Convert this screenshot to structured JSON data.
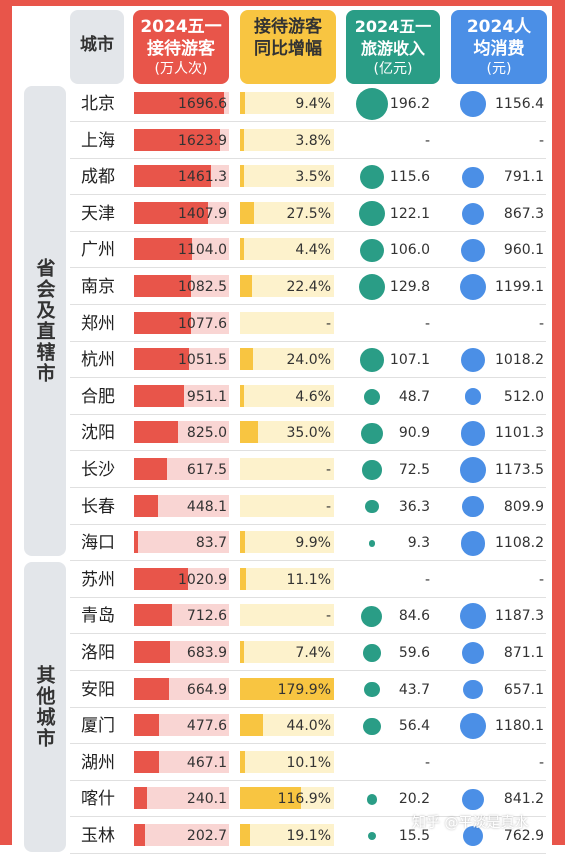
{
  "headers": {
    "city": "城市",
    "visitors_title": "2024五一接待游客",
    "visitors_unit": "(万人次)",
    "growth_title": "接待游客同比增幅",
    "revenue_title": "2024五一旅游收入",
    "revenue_unit": "(亿元)",
    "spend_title": "2024人均消费",
    "spend_unit": "(元)"
  },
  "groups": [
    "省会及直辖市",
    "其他城市"
  ],
  "colors": {
    "visitors": "#e8554a",
    "growth": "#f8c541",
    "revenue": "#2a9d86",
    "spend": "#4b8fe6",
    "frame": "#e8554a"
  },
  "watermark": "知乎 @平淡是真水",
  "chart_data": {
    "type": "table",
    "columns": [
      "城市",
      "2024五一接待游客(万人次)",
      "接待游客同比增幅",
      "2024五一旅游收入(亿元)",
      "2024人均消费(元)"
    ],
    "rows": [
      {
        "city": "北京",
        "group": "省会及直辖市",
        "visitors": "1696.6",
        "growth": "9.4%",
        "revenue": "196.2",
        "spend": "1156.4"
      },
      {
        "city": "上海",
        "group": "省会及直辖市",
        "visitors": "1623.9",
        "growth": "3.8%",
        "revenue": "-",
        "spend": "-"
      },
      {
        "city": "成都",
        "group": "省会及直辖市",
        "visitors": "1461.3",
        "growth": "3.5%",
        "revenue": "115.6",
        "spend": "791.1"
      },
      {
        "city": "天津",
        "group": "省会及直辖市",
        "visitors": "1407.9",
        "growth": "27.5%",
        "revenue": "122.1",
        "spend": "867.3"
      },
      {
        "city": "广州",
        "group": "省会及直辖市",
        "visitors": "1104.0",
        "growth": "4.4%",
        "revenue": "106.0",
        "spend": "960.1"
      },
      {
        "city": "南京",
        "group": "省会及直辖市",
        "visitors": "1082.5",
        "growth": "22.4%",
        "revenue": "129.8",
        "spend": "1199.1"
      },
      {
        "city": "郑州",
        "group": "省会及直辖市",
        "visitors": "1077.6",
        "growth": "-",
        "revenue": "-",
        "spend": "-"
      },
      {
        "city": "杭州",
        "group": "省会及直辖市",
        "visitors": "1051.5",
        "growth": "24.0%",
        "revenue": "107.1",
        "spend": "1018.2"
      },
      {
        "city": "合肥",
        "group": "省会及直辖市",
        "visitors": "951.1",
        "growth": "4.6%",
        "revenue": "48.7",
        "spend": "512.0"
      },
      {
        "city": "沈阳",
        "group": "省会及直辖市",
        "visitors": "825.0",
        "growth": "35.0%",
        "revenue": "90.9",
        "spend": "1101.3"
      },
      {
        "city": "长沙",
        "group": "省会及直辖市",
        "visitors": "617.5",
        "growth": "-",
        "revenue": "72.5",
        "spend": "1173.5"
      },
      {
        "city": "长春",
        "group": "省会及直辖市",
        "visitors": "448.1",
        "growth": "-",
        "revenue": "36.3",
        "spend": "809.9"
      },
      {
        "city": "海口",
        "group": "省会及直辖市",
        "visitors": "83.7",
        "growth": "9.9%",
        "revenue": "9.3",
        "spend": "1108.2"
      },
      {
        "city": "苏州",
        "group": "其他城市",
        "visitors": "1020.9",
        "growth": "11.1%",
        "revenue": "-",
        "spend": "-"
      },
      {
        "city": "青岛",
        "group": "其他城市",
        "visitors": "712.6",
        "growth": "-",
        "revenue": "84.6",
        "spend": "1187.3"
      },
      {
        "city": "洛阳",
        "group": "其他城市",
        "visitors": "683.9",
        "growth": "7.4%",
        "revenue": "59.6",
        "spend": "871.1"
      },
      {
        "city": "安阳",
        "group": "其他城市",
        "visitors": "664.9",
        "growth": "179.9%",
        "revenue": "43.7",
        "spend": "657.1"
      },
      {
        "city": "厦门",
        "group": "其他城市",
        "visitors": "477.6",
        "growth": "44.0%",
        "revenue": "56.4",
        "spend": "1180.1"
      },
      {
        "city": "湖州",
        "group": "其他城市",
        "visitors": "467.1",
        "growth": "10.1%",
        "revenue": "-",
        "spend": "-"
      },
      {
        "city": "喀什",
        "group": "其他城市",
        "visitors": "240.1",
        "growth": "116.9%",
        "revenue": "20.2",
        "spend": "841.2"
      },
      {
        "city": "玉林",
        "group": "其他城市",
        "visitors": "202.7",
        "growth": "19.1%",
        "revenue": "15.5",
        "spend": "762.9"
      }
    ]
  }
}
